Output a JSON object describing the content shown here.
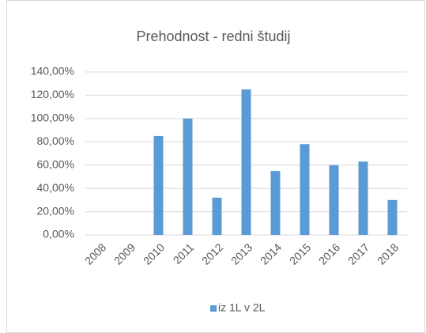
{
  "chart_data": {
    "type": "bar",
    "title": "Prehodnost - redni študij",
    "categories": [
      "2008",
      "2009",
      "2010",
      "2011",
      "2012",
      "2013",
      "2014",
      "2015",
      "2016",
      "2017",
      "2018"
    ],
    "series": [
      {
        "name": "iz 1L v 2L",
        "color": "#5b9bd5",
        "values": [
          0,
          0,
          85,
          100,
          32,
          125,
          55,
          78,
          60,
          63,
          30
        ]
      }
    ],
    "ylim": [
      0,
      140
    ],
    "yticks": [
      {
        "value": 0,
        "label": "0,00%"
      },
      {
        "value": 20,
        "label": "20,00%"
      },
      {
        "value": 40,
        "label": "40,00%"
      },
      {
        "value": 60,
        "label": "60,00%"
      },
      {
        "value": 80,
        "label": "80,00%"
      },
      {
        "value": 100,
        "label": "100,00%"
      },
      {
        "value": 120,
        "label": "120,00%"
      },
      {
        "value": 140,
        "label": "140,00%"
      }
    ],
    "grid": true,
    "legend": "bottom"
  }
}
